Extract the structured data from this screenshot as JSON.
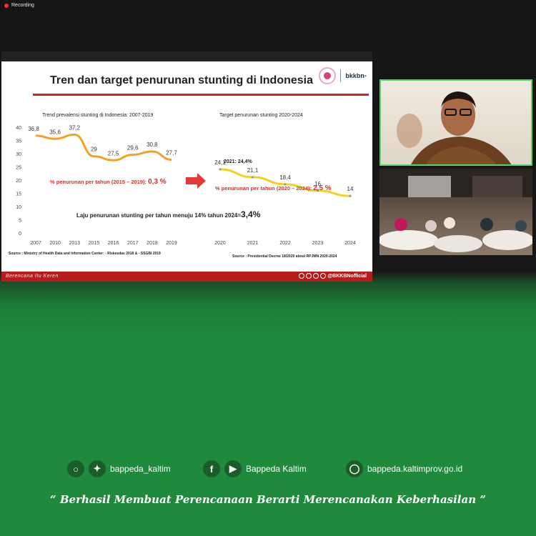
{
  "recording": {
    "label": "Recording"
  },
  "slide": {
    "title": "Tren dan target penurunan stunting di Indonesia",
    "logo_text": "bkkbn",
    "left_subtitle": "Trend prevalensi stunting di Indonesia: 2007-2019",
    "right_subtitle": "Target penurunan stunting 2020-2024",
    "left_note_label": "% penurunan per tahun (2015 – 2019): ",
    "left_note_value": "0,3 %",
    "right_note_label": "% penurunan per tahun (2020 – 2024): ",
    "right_note_value": "2,5 %",
    "annotation_2021": "2021: 24,4%",
    "summary_label": "Laju penurunan stunting per tahun menuju 14% tahun 2024=",
    "summary_value": "3,4%",
    "source_left": "Source : Ministry of Health Data and Information Center: - Riskesdas 2018 & - SSGBI 2019",
    "source_right": "Source : Presidential Decree 18/2020 about RPJMN 2020-2024",
    "footer_tagline": "Berencana Itu Keren",
    "footer_handle": "@BKKBNofficial",
    "colors": {
      "line": "#f2a128",
      "target_line": "#f2d020",
      "accent": "#c62828",
      "footer": "#b71c1c"
    }
  },
  "chart_data": [
    {
      "type": "line",
      "title": "Trend prevalensi stunting di Indonesia: 2007-2019",
      "x": [
        "2007",
        "2010",
        "2013",
        "2015",
        "2016",
        "2017",
        "2018",
        "2019"
      ],
      "values": [
        36.8,
        35.6,
        37.2,
        29,
        27.5,
        29.6,
        30.8,
        27.7
      ],
      "labels": [
        "36,8",
        "35,6",
        "37,2",
        "29",
        "27,5",
        "29,6",
        "30,8",
        "27,7"
      ],
      "ylim": [
        0,
        40
      ],
      "yticks": [
        "0",
        "5",
        "10",
        "15",
        "20",
        "25",
        "30",
        "35",
        "40"
      ],
      "grid": false
    },
    {
      "type": "line",
      "title": "Target penurunan stunting 2020-2024",
      "x": [
        "2020",
        "2021",
        "2022",
        "2023",
        "2024"
      ],
      "values": [
        24.1,
        21.1,
        18.4,
        16,
        14
      ],
      "labels": [
        "24,1",
        "21,1",
        "18,4",
        "16",
        "14"
      ],
      "ylim": [
        0,
        40
      ],
      "grid": false
    }
  ],
  "footer": {
    "instagram_icon": "instagram-icon",
    "twitter_icon": "twitter-icon",
    "handle": "bappeda_kaltim",
    "facebook_icon": "facebook-icon",
    "youtube_icon": "youtube-icon",
    "page_name": "Bappeda Kaltim",
    "globe_icon": "globe-icon",
    "website": "bappeda.kaltimprov.go.id",
    "quote": "“ Berhasil  Membuat Perencanaan Berarti Merencanakan Keberhasilan ”",
    "colors": {
      "background": "#1f8a3b"
    }
  }
}
